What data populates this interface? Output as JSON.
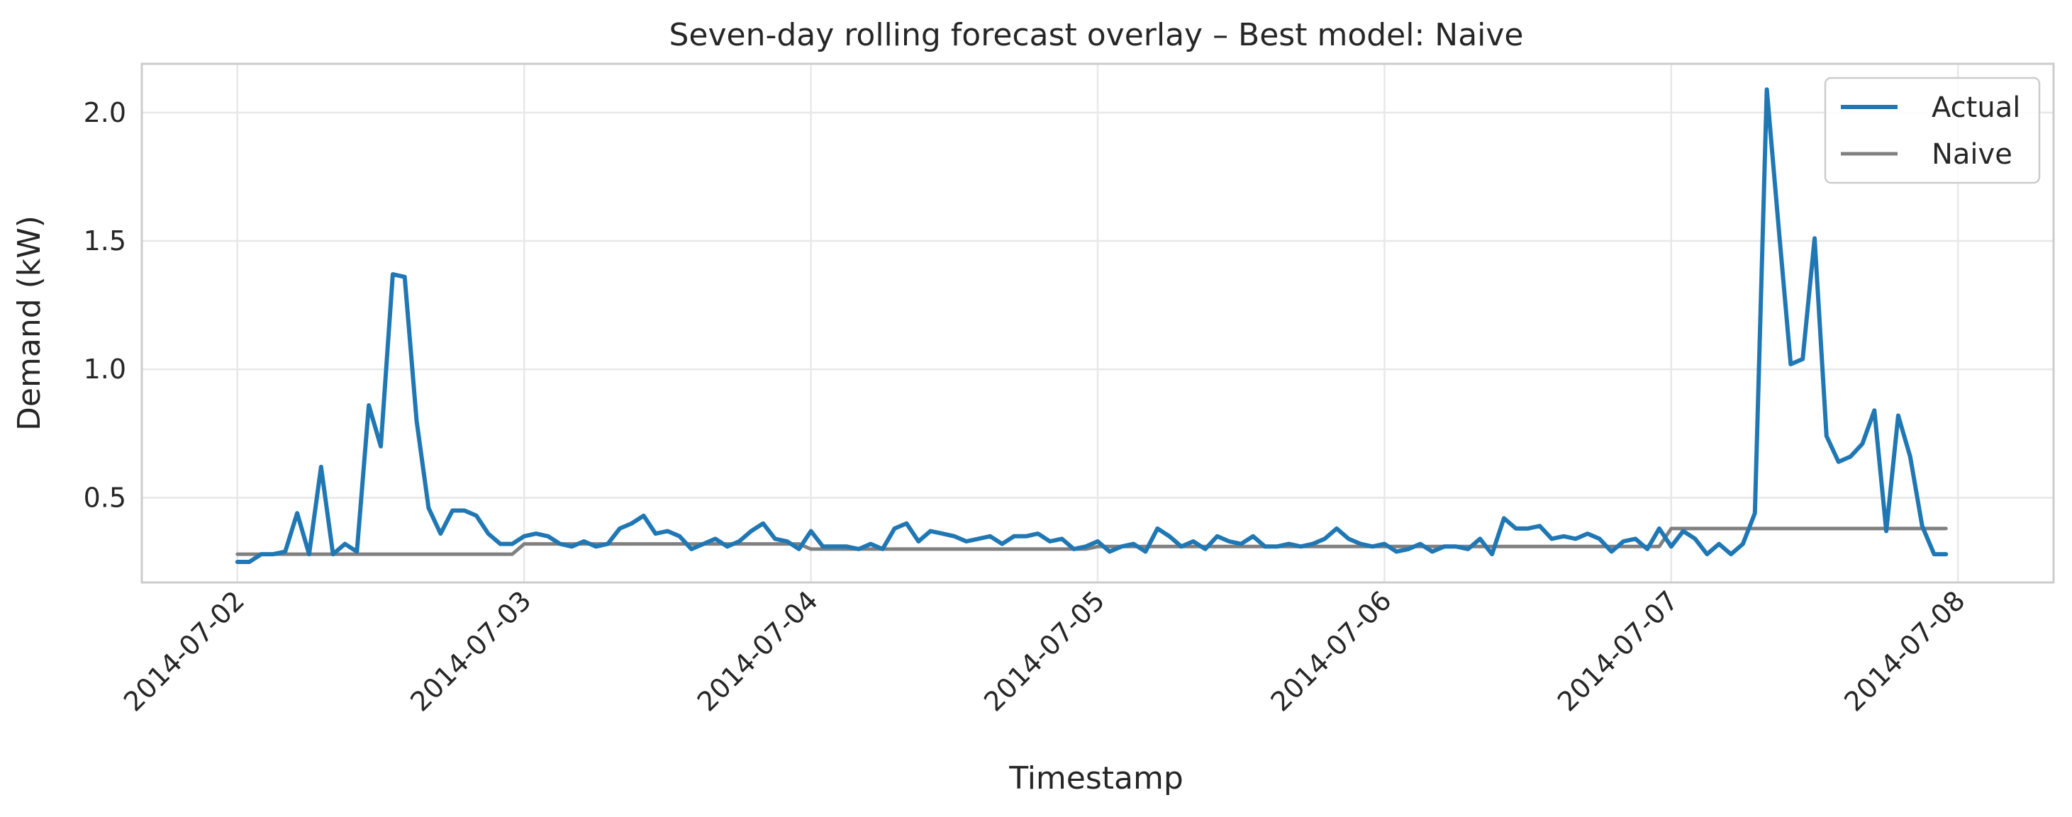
{
  "chart_data": {
    "type": "line",
    "title": "Seven-day rolling forecast overlay – Best model: Naive",
    "xlabel": "Timestamp",
    "ylabel": "Demand (kW)",
    "x_start": "2014-07-02 00:00",
    "x_step": "1H",
    "xlim": [
      "2014-07-01 16:00",
      "2014-07-08 08:00"
    ],
    "ylim": [
      0.17,
      2.19
    ],
    "x_ticks": [
      "2014-07-02",
      "2014-07-03",
      "2014-07-04",
      "2014-07-05",
      "2014-07-06",
      "2014-07-07",
      "2014-07-08"
    ],
    "y_ticks": [
      0.5,
      1.0,
      1.5,
      2.0
    ],
    "y_tick_labels": [
      "0.5",
      "1.0",
      "1.5",
      "2.0"
    ],
    "grid": true,
    "legend_position": "top-right",
    "series": [
      {
        "name": "Actual",
        "color": "#1f77b4",
        "values": [
          0.25,
          0.25,
          0.28,
          0.28,
          0.29,
          0.44,
          0.28,
          0.62,
          0.28,
          0.32,
          0.29,
          0.86,
          0.7,
          1.37,
          1.36,
          0.8,
          0.46,
          0.36,
          0.45,
          0.45,
          0.43,
          0.36,
          0.32,
          0.32,
          0.35,
          0.36,
          0.35,
          0.32,
          0.31,
          0.33,
          0.31,
          0.32,
          0.38,
          0.4,
          0.43,
          0.36,
          0.37,
          0.35,
          0.3,
          0.32,
          0.34,
          0.31,
          0.33,
          0.37,
          0.4,
          0.34,
          0.33,
          0.3,
          0.37,
          0.31,
          0.31,
          0.31,
          0.3,
          0.32,
          0.3,
          0.38,
          0.4,
          0.33,
          0.37,
          0.36,
          0.35,
          0.33,
          0.34,
          0.35,
          0.32,
          0.35,
          0.35,
          0.36,
          0.33,
          0.34,
          0.3,
          0.31,
          0.33,
          0.29,
          0.31,
          0.32,
          0.29,
          0.38,
          0.35,
          0.31,
          0.33,
          0.3,
          0.35,
          0.33,
          0.32,
          0.35,
          0.31,
          0.31,
          0.32,
          0.31,
          0.32,
          0.34,
          0.38,
          0.34,
          0.32,
          0.31,
          0.32,
          0.29,
          0.3,
          0.32,
          0.29,
          0.31,
          0.31,
          0.3,
          0.34,
          0.28,
          0.42,
          0.38,
          0.38,
          0.39,
          0.34,
          0.35,
          0.34,
          0.36,
          0.34,
          0.29,
          0.33,
          0.34,
          0.3,
          0.38,
          0.31,
          0.37,
          0.34,
          0.28,
          0.32,
          0.28,
          0.32,
          0.44,
          2.09,
          1.55,
          1.02,
          1.04,
          1.51,
          0.74,
          0.64,
          0.66,
          0.71,
          0.84,
          0.37,
          0.82,
          0.66,
          0.39,
          0.28,
          0.28
        ]
      },
      {
        "name": "Naive",
        "color": "#808080",
        "values": [
          0.28,
          0.28,
          0.28,
          0.28,
          0.28,
          0.28,
          0.28,
          0.28,
          0.28,
          0.28,
          0.28,
          0.28,
          0.28,
          0.28,
          0.28,
          0.28,
          0.28,
          0.28,
          0.28,
          0.28,
          0.28,
          0.28,
          0.28,
          0.28,
          0.32,
          0.32,
          0.32,
          0.32,
          0.32,
          0.32,
          0.32,
          0.32,
          0.32,
          0.32,
          0.32,
          0.32,
          0.32,
          0.32,
          0.32,
          0.32,
          0.32,
          0.32,
          0.32,
          0.32,
          0.32,
          0.32,
          0.32,
          0.32,
          0.3,
          0.3,
          0.3,
          0.3,
          0.3,
          0.3,
          0.3,
          0.3,
          0.3,
          0.3,
          0.3,
          0.3,
          0.3,
          0.3,
          0.3,
          0.3,
          0.3,
          0.3,
          0.3,
          0.3,
          0.3,
          0.3,
          0.3,
          0.3,
          0.31,
          0.31,
          0.31,
          0.31,
          0.31,
          0.31,
          0.31,
          0.31,
          0.31,
          0.31,
          0.31,
          0.31,
          0.31,
          0.31,
          0.31,
          0.31,
          0.31,
          0.31,
          0.31,
          0.31,
          0.31,
          0.31,
          0.31,
          0.31,
          0.31,
          0.31,
          0.31,
          0.31,
          0.31,
          0.31,
          0.31,
          0.31,
          0.31,
          0.31,
          0.31,
          0.31,
          0.31,
          0.31,
          0.31,
          0.31,
          0.31,
          0.31,
          0.31,
          0.31,
          0.31,
          0.31,
          0.31,
          0.31,
          0.38,
          0.38,
          0.38,
          0.38,
          0.38,
          0.38,
          0.38,
          0.38,
          0.38,
          0.38,
          0.38,
          0.38,
          0.38,
          0.38,
          0.38,
          0.38,
          0.38,
          0.38,
          0.38,
          0.38,
          0.38,
          0.38,
          0.38,
          0.38
        ]
      }
    ]
  }
}
